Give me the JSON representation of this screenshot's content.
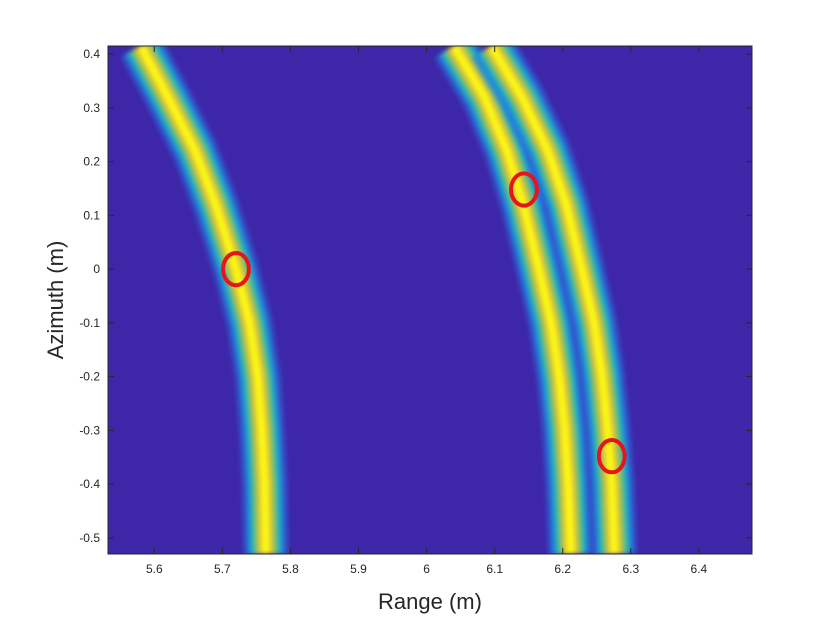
{
  "chart_data": {
    "type": "heatmap",
    "xlabel": "Range (m)",
    "ylabel": "Azimuth (m)",
    "xlim": [
      5.532,
      6.478
    ],
    "ylim": [
      -0.53,
      0.415
    ],
    "x_ticks": [
      5.6,
      5.7,
      5.8,
      5.9,
      6.0,
      6.1,
      6.2,
      6.3,
      6.4
    ],
    "x_tick_labels": [
      "5.6",
      "5.7",
      "5.8",
      "5.9",
      "6",
      "6.1",
      "6.2",
      "6.3",
      "6.4"
    ],
    "y_ticks": [
      0.4,
      0.3,
      0.2,
      0.1,
      0,
      -0.1,
      -0.2,
      -0.3,
      -0.4,
      -0.5
    ],
    "y_tick_labels": [
      "0.4",
      "0.3",
      "0.2",
      "0.1",
      "0",
      "-0.1",
      "-0.2",
      "-0.3",
      "-0.4",
      "-0.5"
    ],
    "grid": false,
    "colormap": "parula",
    "background_color": "#3e26a8",
    "range_curves": [
      {
        "points": [
          [
            5.58,
            0.415
          ],
          [
            5.62,
            0.32
          ],
          [
            5.66,
            0.22
          ],
          [
            5.69,
            0.12
          ],
          [
            5.72,
            0.0
          ],
          [
            5.74,
            -0.1
          ],
          [
            5.752,
            -0.2
          ],
          [
            5.758,
            -0.3
          ],
          [
            5.762,
            -0.4
          ],
          [
            5.764,
            -0.53
          ]
        ]
      },
      {
        "points": [
          [
            6.04,
            0.415
          ],
          [
            6.085,
            0.32
          ],
          [
            6.118,
            0.22
          ],
          [
            6.142,
            0.12
          ],
          [
            6.165,
            0.0
          ],
          [
            6.183,
            -0.1
          ],
          [
            6.195,
            -0.2
          ],
          [
            6.203,
            -0.3
          ],
          [
            6.208,
            -0.4
          ],
          [
            6.212,
            -0.53
          ]
        ]
      },
      {
        "points": [
          [
            6.095,
            0.415
          ],
          [
            6.14,
            0.32
          ],
          [
            6.178,
            0.22
          ],
          [
            6.205,
            0.12
          ],
          [
            6.228,
            0.0
          ],
          [
            6.246,
            -0.1
          ],
          [
            6.258,
            -0.2
          ],
          [
            6.266,
            -0.3
          ],
          [
            6.272,
            -0.4
          ],
          [
            6.276,
            -0.53
          ]
        ]
      }
    ],
    "annotations": [
      {
        "shape": "ellipse",
        "x": 5.72,
        "y": 0.0,
        "rx": 0.019,
        "ry": 0.03,
        "color": "#e8141c"
      },
      {
        "shape": "ellipse",
        "x": 6.143,
        "y": 0.148,
        "rx": 0.019,
        "ry": 0.03,
        "color": "#e8141c"
      },
      {
        "shape": "ellipse",
        "x": 6.272,
        "y": -0.348,
        "rx": 0.019,
        "ry": 0.03,
        "color": "#e8141c"
      }
    ]
  }
}
